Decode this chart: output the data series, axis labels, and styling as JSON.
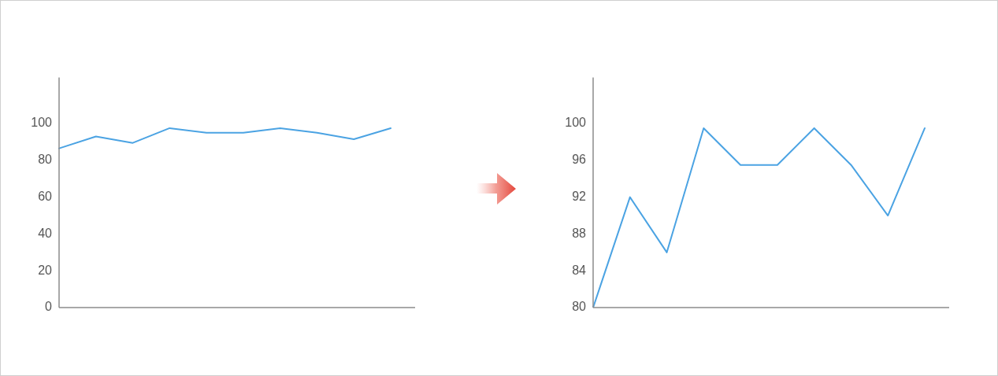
{
  "chart_data": [
    {
      "type": "line",
      "categories": [
        null,
        null,
        null,
        null,
        null,
        null,
        null,
        null,
        null,
        null
      ],
      "values": [
        86.5,
        93,
        89.5,
        97.5,
        95,
        95,
        97.5,
        95,
        91.5,
        97.5
      ],
      "color": "#4ba3e3",
      "ylim": [
        0,
        125
      ],
      "yticks": [
        0,
        20,
        40,
        60,
        80,
        100
      ],
      "tick_labels": "y"
    },
    {
      "type": "line",
      "categories": [
        null,
        null,
        null,
        null,
        null,
        null,
        null,
        null,
        null,
        null
      ],
      "values": [
        80,
        92,
        86,
        99.5,
        95.5,
        95.5,
        99.5,
        95.5,
        90,
        99.5
      ],
      "color": "#4ba3e3",
      "ylim": [
        80,
        105
      ],
      "yticks": [
        80,
        84,
        88,
        92,
        96,
        100
      ],
      "tick_labels": "y"
    }
  ]
}
